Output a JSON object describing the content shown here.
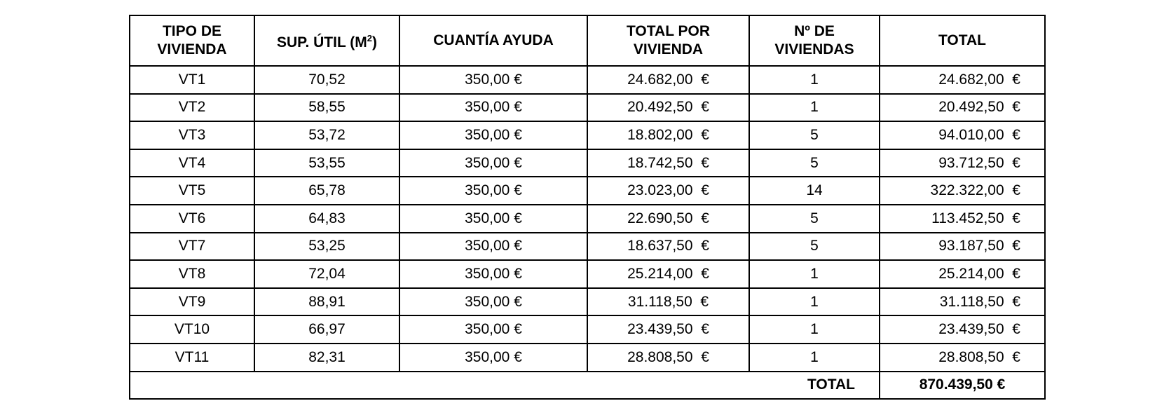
{
  "table": {
    "headers": [
      [
        "TIPO DE",
        "VIVIENDA"
      ],
      {
        "text": "SUP. ÚTIL (M",
        "superscript": "2",
        "close": ")"
      },
      [
        "CUANTÍA AYUDA"
      ],
      [
        "TOTAL POR",
        "VIVIENDA"
      ],
      [
        "Nº DE",
        "VIVIENDAS"
      ],
      [
        "TOTAL"
      ]
    ],
    "rows": [
      [
        "VT1",
        "70,52",
        "350,00 €",
        "24.682,00  €",
        "1",
        "24.682,00  €"
      ],
      [
        "VT2",
        "58,55",
        "350,00 €",
        "20.492,50  €",
        "1",
        "20.492,50  €"
      ],
      [
        "VT3",
        "53,72",
        "350,00 €",
        "18.802,00  €",
        "5",
        "94.010,00  €"
      ],
      [
        "VT4",
        "53,55",
        "350,00 €",
        "18.742,50  €",
        "5",
        "93.712,50  €"
      ],
      [
        "VT5",
        "65,78",
        "350,00 €",
        "23.023,00  €",
        "14",
        "322.322,00  €"
      ],
      [
        "VT6",
        "64,83",
        "350,00 €",
        "22.690,50  €",
        "5",
        "113.452,50  €"
      ],
      [
        "VT7",
        "53,25",
        "350,00 €",
        "18.637,50  €",
        "5",
        "93.187,50  €"
      ],
      [
        "VT8",
        "72,04",
        "350,00 €",
        "25.214,00  €",
        "1",
        "25.214,00  €"
      ],
      [
        "VT9",
        "88,91",
        "350,00 €",
        "31.118,50  €",
        "1",
        "31.118,50  €"
      ],
      [
        "VT10",
        "66,97",
        "350,00 €",
        "23.439,50  €",
        "1",
        "23.439,50  €"
      ],
      [
        "VT11",
        "82,31",
        "350,00 €",
        "28.808,50  €",
        "1",
        "28.808,50  €"
      ]
    ],
    "total_label": "TOTAL",
    "total_value": "870.439,50 €"
  }
}
